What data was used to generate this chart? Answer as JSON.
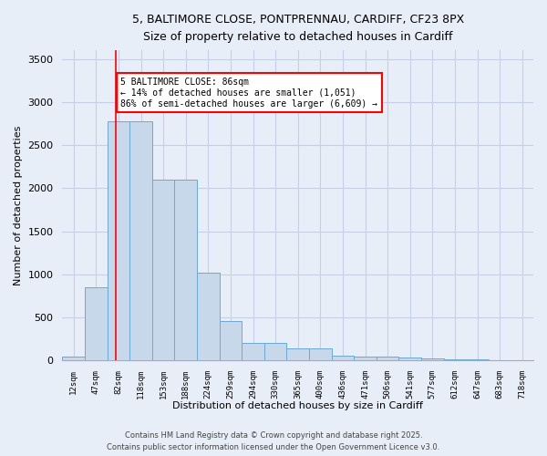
{
  "title1": "5, BALTIMORE CLOSE, PONTPRENNAU, CARDIFF, CF23 8PX",
  "title2": "Size of property relative to detached houses in Cardiff",
  "xlabel": "Distribution of detached houses by size in Cardiff",
  "ylabel": "Number of detached properties",
  "bin_labels": [
    "12sqm",
    "47sqm",
    "82sqm",
    "118sqm",
    "153sqm",
    "188sqm",
    "224sqm",
    "259sqm",
    "294sqm",
    "330sqm",
    "365sqm",
    "400sqm",
    "436sqm",
    "471sqm",
    "506sqm",
    "541sqm",
    "577sqm",
    "612sqm",
    "647sqm",
    "683sqm",
    "718sqm"
  ],
  "bar_heights": [
    50,
    850,
    2780,
    2780,
    2100,
    2100,
    1020,
    460,
    200,
    200,
    140,
    140,
    60,
    50,
    40,
    30,
    20,
    10,
    10,
    5,
    5
  ],
  "bar_color": "#c8d8eb",
  "bar_edge_color": "#6aaad4",
  "background_color": "#e8eef8",
  "grid_color": "#c5cfe8",
  "annotation_text": "5 BALTIMORE CLOSE: 86sqm\n← 14% of detached houses are smaller (1,051)\n86% of semi-detached houses are larger (6,609) →",
  "annotation_box_color": "white",
  "annotation_box_edge": "red",
  "ylim": [
    0,
    3600
  ],
  "yticks": [
    0,
    500,
    1000,
    1500,
    2000,
    2500,
    3000,
    3500
  ],
  "footer1": "Contains HM Land Registry data © Crown copyright and database right 2025.",
  "footer2": "Contains public sector information licensed under the Open Government Licence v3.0."
}
